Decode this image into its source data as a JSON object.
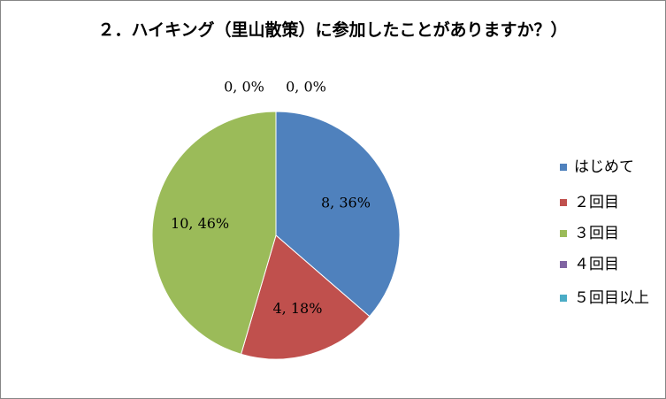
{
  "chart_data": {
    "type": "pie",
    "title": "２．ハイキング（里山散策）に参加したことがありますか？）",
    "categories": [
      "はじめて",
      "２回目",
      "３回目",
      "４回目",
      "５回目以上"
    ],
    "values": [
      8,
      4,
      10,
      0,
      0
    ],
    "value_labels": [
      "8, 36%",
      "4, 18%",
      "10, 46%",
      "0, 0%",
      "0, 0%"
    ],
    "colors": [
      "#4f81bd",
      "#c0504d",
      "#9bbb59",
      "#8064a2",
      "#4bacc6"
    ],
    "legend": "right"
  }
}
